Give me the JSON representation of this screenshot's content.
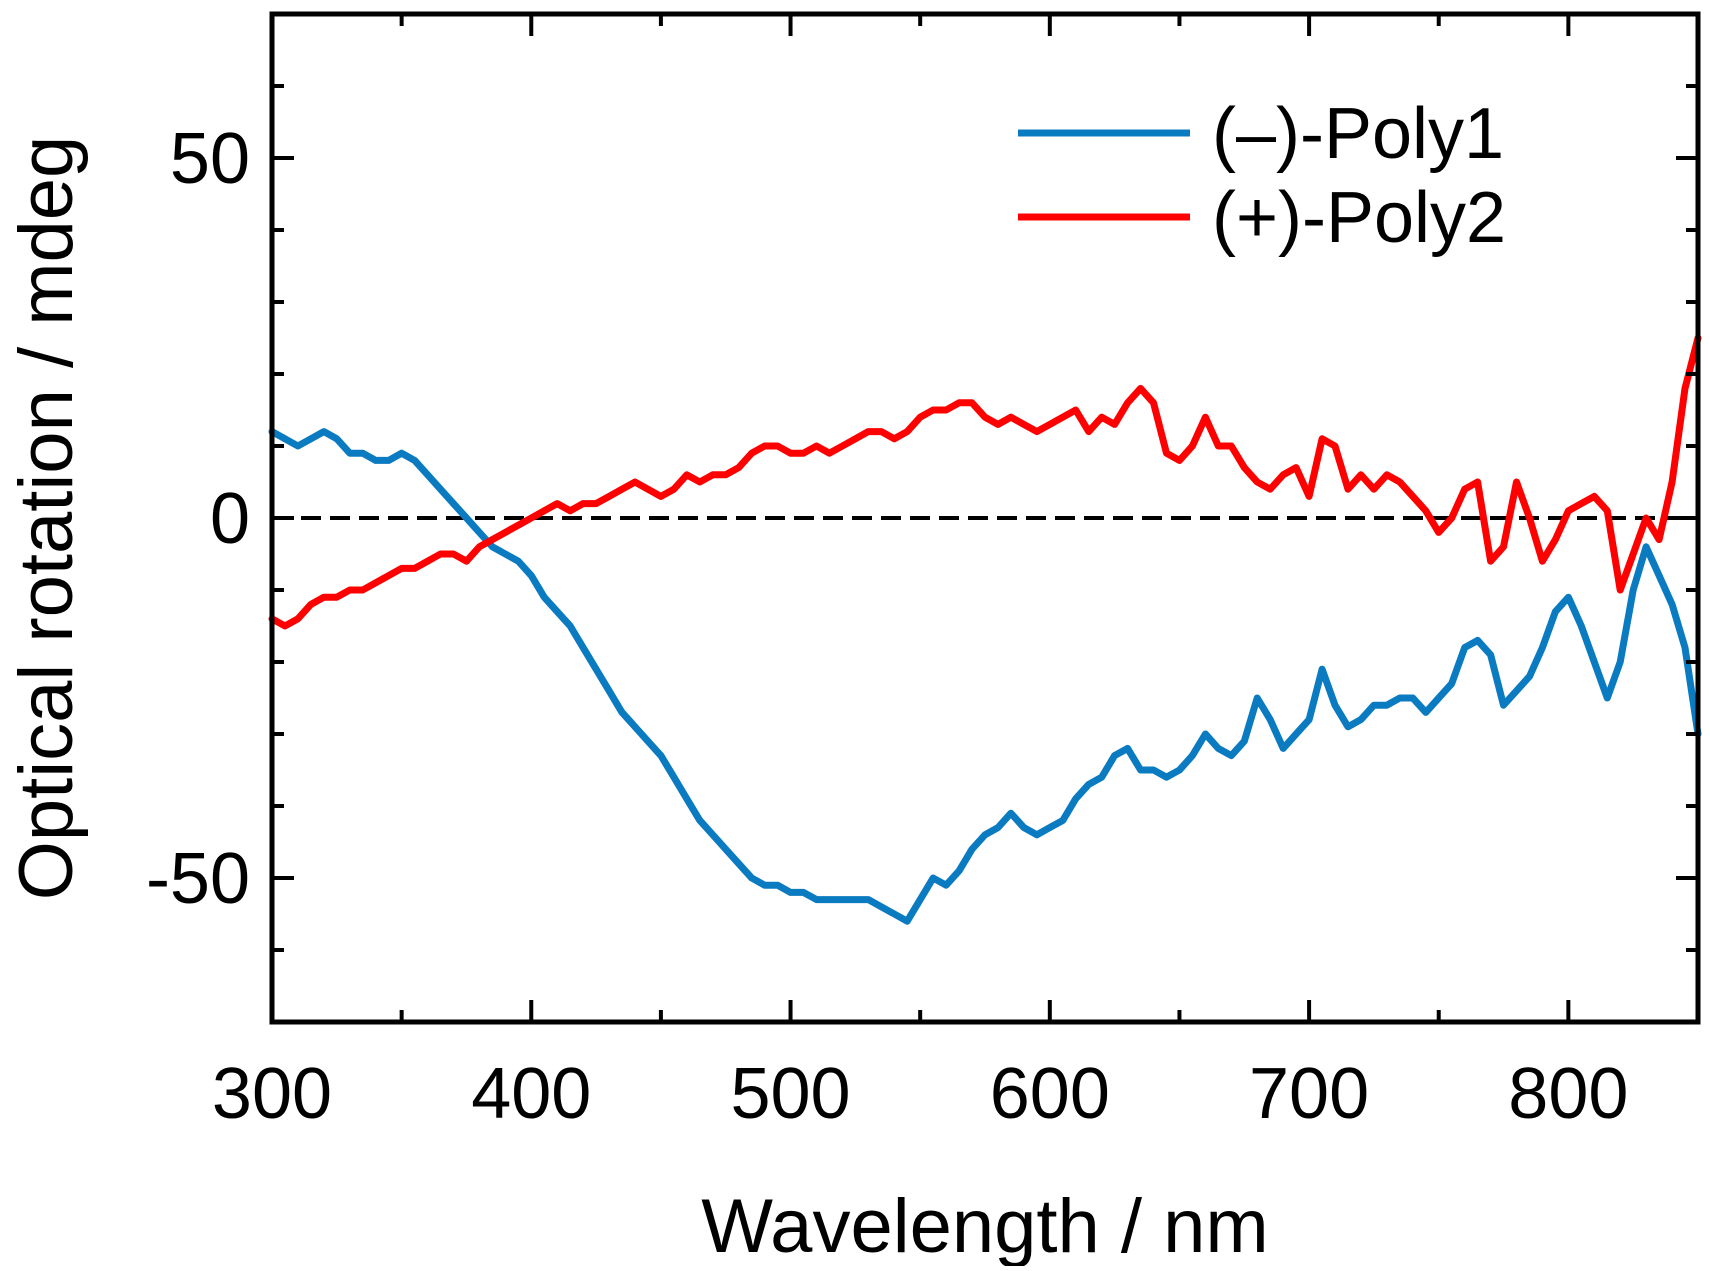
{
  "chart_data": {
    "type": "line",
    "title": "",
    "xlabel": "Wavelength / nm",
    "ylabel": "Optical rotation / mdeg",
    "xlim": [
      300,
      850
    ],
    "ylim": [
      -70,
      70
    ],
    "x_ticks": [
      300,
      400,
      500,
      600,
      700,
      800
    ],
    "x_minor_ticks": [
      350,
      450,
      550,
      650,
      750
    ],
    "y_ticks": [
      -50,
      0,
      50
    ],
    "y_minor_ticks": [
      -60,
      -40,
      -30,
      -20,
      -10,
      10,
      20,
      30,
      40,
      60
    ],
    "x_tick_labels": [
      "300",
      "400",
      "500",
      "600",
      "700",
      "800"
    ],
    "y_tick_labels": [
      "-50",
      "0",
      "50"
    ],
    "zero_line": {
      "value": 0,
      "style": "dashed",
      "color": "#000000"
    },
    "legend_position": "top-right",
    "series": [
      {
        "name": "(–)-Poly1",
        "color": "#0a7bc1",
        "x": [
          300,
          305,
          310,
          315,
          320,
          325,
          330,
          335,
          340,
          345,
          350,
          355,
          360,
          365,
          370,
          375,
          380,
          385,
          390,
          395,
          400,
          405,
          410,
          415,
          420,
          425,
          430,
          435,
          440,
          445,
          450,
          455,
          460,
          465,
          470,
          475,
          480,
          485,
          490,
          495,
          500,
          505,
          510,
          515,
          520,
          525,
          530,
          535,
          540,
          545,
          550,
          555,
          560,
          565,
          570,
          575,
          580,
          585,
          590,
          595,
          600,
          605,
          610,
          615,
          620,
          625,
          630,
          635,
          640,
          645,
          650,
          655,
          660,
          665,
          670,
          675,
          680,
          685,
          690,
          695,
          700,
          705,
          710,
          715,
          720,
          725,
          730,
          735,
          740,
          745,
          750,
          755,
          760,
          765,
          770,
          775,
          780,
          785,
          790,
          795,
          800,
          805,
          810,
          815,
          820,
          825,
          830,
          835,
          840,
          845,
          850
        ],
        "values": [
          12,
          11,
          10,
          11,
          12,
          11,
          9,
          9,
          8,
          8,
          9,
          8,
          6,
          4,
          2,
          0,
          -2,
          -4,
          -5,
          -6,
          -8,
          -11,
          -13,
          -15,
          -18,
          -21,
          -24,
          -27,
          -29,
          -31,
          -33,
          -36,
          -39,
          -42,
          -44,
          -46,
          -48,
          -50,
          -51,
          -51,
          -52,
          -52,
          -53,
          -53,
          -53,
          -53,
          -53,
          -54,
          -55,
          -56,
          -53,
          -50,
          -51,
          -49,
          -46,
          -44,
          -43,
          -41,
          -43,
          -44,
          -43,
          -42,
          -39,
          -37,
          -36,
          -33,
          -32,
          -35,
          -35,
          -36,
          -35,
          -33,
          -30,
          -32,
          -33,
          -31,
          -25,
          -28,
          -32,
          -30,
          -28,
          -21,
          -26,
          -29,
          -28,
          -26,
          -26,
          -25,
          -25,
          -27,
          -25,
          -23,
          -18,
          -17,
          -19,
          -26,
          -24,
          -22,
          -18,
          -13,
          -11,
          -15,
          -20,
          -25,
          -20,
          -10,
          -4,
          -8,
          -12,
          -18,
          -30
        ]
      },
      {
        "name": "(+)-Poly2",
        "color": "#ff0000",
        "x": [
          300,
          305,
          310,
          315,
          320,
          325,
          330,
          335,
          340,
          345,
          350,
          355,
          360,
          365,
          370,
          375,
          380,
          385,
          390,
          395,
          400,
          405,
          410,
          415,
          420,
          425,
          430,
          435,
          440,
          445,
          450,
          455,
          460,
          465,
          470,
          475,
          480,
          485,
          490,
          495,
          500,
          505,
          510,
          515,
          520,
          525,
          530,
          535,
          540,
          545,
          550,
          555,
          560,
          565,
          570,
          575,
          580,
          585,
          590,
          595,
          600,
          605,
          610,
          615,
          620,
          625,
          630,
          635,
          640,
          645,
          650,
          655,
          660,
          665,
          670,
          675,
          680,
          685,
          690,
          695,
          700,
          705,
          710,
          715,
          720,
          725,
          730,
          735,
          740,
          745,
          750,
          755,
          760,
          765,
          770,
          775,
          780,
          785,
          790,
          795,
          800,
          805,
          810,
          815,
          820,
          825,
          830,
          835,
          840,
          845,
          850
        ],
        "values": [
          -14,
          -15,
          -14,
          -12,
          -11,
          -11,
          -10,
          -10,
          -9,
          -8,
          -7,
          -7,
          -6,
          -5,
          -5,
          -6,
          -4,
          -3,
          -2,
          -1,
          0,
          1,
          2,
          1,
          2,
          2,
          3,
          4,
          5,
          4,
          3,
          4,
          6,
          5,
          6,
          6,
          7,
          9,
          10,
          10,
          9,
          9,
          10,
          9,
          10,
          11,
          12,
          12,
          11,
          12,
          14,
          15,
          15,
          16,
          16,
          14,
          13,
          14,
          13,
          12,
          13,
          14,
          15,
          12,
          14,
          13,
          16,
          18,
          16,
          9,
          8,
          10,
          14,
          10,
          10,
          7,
          5,
          4,
          6,
          7,
          3,
          11,
          10,
          4,
          6,
          4,
          6,
          5,
          3,
          1,
          -2,
          0,
          4,
          5,
          -6,
          -4,
          5,
          0,
          -6,
          -3,
          1,
          2,
          3,
          1,
          -10,
          -5,
          0,
          -3,
          5,
          18,
          25
        ]
      }
    ]
  }
}
